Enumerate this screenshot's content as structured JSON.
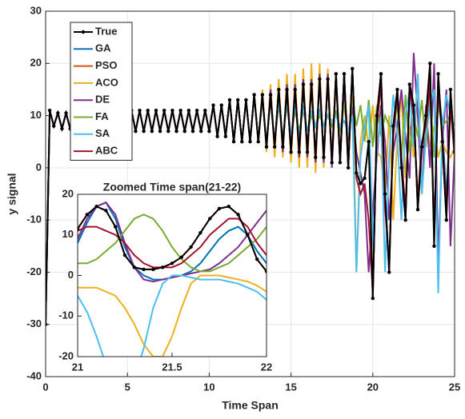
{
  "chart_data": [
    {
      "type": "line",
      "xlabel": "Time Span",
      "ylabel": "y signal",
      "xlim": [
        0,
        25
      ],
      "ylim": [
        -40,
        30
      ],
      "xticks": [
        0,
        5,
        10,
        15,
        20,
        25
      ],
      "yticks": [
        -40,
        -30,
        -20,
        -10,
        0,
        10,
        20,
        30
      ],
      "grid": true,
      "legend": "upper left",
      "x": [
        0,
        0.25,
        0.5,
        0.75,
        1,
        1.25,
        1.5,
        1.75,
        2,
        2.25,
        2.5,
        2.75,
        3,
        3.25,
        3.5,
        3.75,
        4,
        4.25,
        4.5,
        4.75,
        5,
        5.25,
        5.5,
        5.75,
        6,
        6.25,
        6.5,
        6.75,
        7,
        7.25,
        7.5,
        7.75,
        8,
        8.25,
        8.5,
        8.75,
        9,
        9.25,
        9.5,
        9.75,
        10,
        10.25,
        10.5,
        10.75,
        11,
        11.25,
        11.5,
        11.75,
        12,
        12.25,
        12.5,
        12.75,
        13,
        13.25,
        13.5,
        13.75,
        14,
        14.25,
        14.5,
        14.75,
        15,
        15.25,
        15.5,
        15.75,
        16,
        16.25,
        16.5,
        16.75,
        17,
        17.25,
        17.5,
        17.75,
        18,
        18.25,
        18.5,
        18.75,
        19,
        19.25,
        19.5,
        19.75,
        20,
        20.25,
        20.5,
        20.75,
        21,
        21.25,
        21.5,
        21.75,
        22,
        22.25,
        22.5,
        22.75,
        23,
        23.25,
        23.5,
        23.75,
        24,
        24.25,
        24.5,
        24.75,
        25
      ],
      "series": [
        {
          "name": "True",
          "color": "#000000",
          "marker": "o",
          "values": [
            -30,
            11,
            8,
            10.5,
            7.5,
            10.5,
            7.5,
            10.5,
            7.5,
            10.5,
            7.5,
            10.5,
            7.5,
            10.5,
            7.5,
            10.5,
            7.5,
            10.5,
            7.5,
            10.5,
            7.5,
            11,
            7,
            11,
            7,
            11,
            7,
            11,
            7,
            11,
            7,
            11,
            7,
            11,
            7,
            11,
            7,
            11,
            7,
            11,
            7,
            12,
            6,
            12,
            6,
            13,
            5,
            13,
            5,
            13,
            5,
            14,
            5,
            14,
            4,
            14,
            4,
            15,
            4,
            15,
            3,
            15,
            3,
            16,
            3,
            16,
            2,
            17,
            2,
            17,
            1,
            18,
            1,
            18,
            0,
            19,
            -1,
            -3,
            -2,
            5,
            -25,
            10,
            18,
            -5,
            -20,
            8,
            15,
            0,
            -10,
            16,
            12,
            -8,
            4,
            10,
            20,
            -15,
            18,
            5,
            -10,
            15,
            3
          ]
        },
        {
          "name": "GA",
          "color": "#0072BD",
          "values": [
            -30,
            11,
            8,
            10.5,
            7.5,
            10.5,
            7.5,
            10.5,
            7.5,
            10.5,
            7.5,
            10.5,
            7.5,
            10.5,
            7.5,
            10.5,
            7.5,
            10.5,
            7.5,
            10.5,
            7.5,
            11,
            7,
            11,
            7,
            11,
            7,
            11,
            7,
            11,
            7,
            11,
            7,
            11,
            7,
            11,
            7,
            11,
            7,
            11,
            7,
            12,
            6,
            12,
            6,
            13,
            5,
            13,
            5,
            13,
            5,
            14,
            5,
            14,
            4,
            14,
            4,
            15,
            4,
            15,
            3,
            15,
            3,
            16,
            3,
            16,
            2,
            17,
            2,
            17,
            1,
            18,
            1,
            18,
            0,
            19,
            -1,
            -3,
            -2,
            5,
            -25,
            10,
            18,
            -5,
            -20,
            8,
            15,
            0,
            -10,
            16,
            12,
            -8,
            4,
            10,
            18,
            -12,
            16,
            8,
            -6,
            12,
            5
          ]
        },
        {
          "name": "PSO",
          "color": "#D95319",
          "values": [
            -30,
            11,
            8,
            10.5,
            7.5,
            10.5,
            7.5,
            10.5,
            7.5,
            10.5,
            7.5,
            10.5,
            7.5,
            10.5,
            7.5,
            10.5,
            7.5,
            10.5,
            7.5,
            10.5,
            7.5,
            11,
            7,
            11,
            7,
            11,
            7,
            11,
            7,
            11,
            7,
            11,
            7,
            11,
            7,
            11,
            7,
            11,
            7,
            11,
            7,
            12,
            6,
            12,
            6,
            13,
            5,
            13,
            5,
            13,
            5,
            14,
            5,
            14,
            4,
            14,
            4,
            15,
            4,
            15,
            3,
            15,
            3,
            16,
            3,
            16,
            2,
            17,
            2,
            17,
            1,
            18,
            1,
            18,
            0,
            19,
            -1,
            -3,
            -2,
            5,
            -25,
            10,
            18,
            -5,
            -20,
            8,
            15,
            0,
            -10,
            16,
            12,
            -8,
            4,
            10,
            20,
            -15,
            18,
            5,
            -10,
            15,
            3
          ]
        },
        {
          "name": "ACO",
          "color": "#EDB120",
          "values": [
            -30,
            11,
            8,
            10.5,
            7.5,
            10.5,
            7.5,
            10.5,
            7.5,
            10.5,
            7.5,
            10.5,
            7.5,
            10.5,
            7.5,
            10.5,
            7.5,
            10.5,
            7.5,
            10.5,
            7.5,
            11,
            7,
            11,
            7,
            11,
            7,
            11,
            7,
            11,
            7,
            11,
            7,
            11,
            7,
            11,
            7,
            11,
            7,
            11,
            7,
            12,
            6,
            12,
            6,
            13,
            5,
            13,
            5,
            13,
            5,
            14,
            5,
            15,
            3,
            16,
            2,
            17,
            2,
            18,
            1,
            18,
            0,
            19,
            0,
            20,
            -1,
            20,
            0,
            19,
            2,
            18,
            3,
            17,
            4,
            16,
            -20,
            5,
            10,
            4,
            12,
            3,
            2,
            -5,
            10,
            -10,
            6,
            14,
            -2,
            8,
            2,
            18,
            -5,
            10,
            4,
            8,
            2,
            5,
            3,
            2,
            4
          ]
        },
        {
          "name": "DE",
          "color": "#7E2F8E",
          "values": [
            -30,
            11,
            8,
            10.5,
            7.5,
            10.5,
            7.5,
            10.5,
            7.5,
            10.5,
            7.5,
            10.5,
            7.5,
            10.5,
            7.5,
            10.5,
            7.5,
            10.5,
            7.5,
            10.5,
            7.5,
            11,
            7,
            11,
            7,
            11,
            7,
            11,
            7,
            11,
            7,
            11,
            7,
            11,
            7,
            11,
            7,
            11,
            7,
            11,
            7,
            12,
            6,
            12,
            6,
            13,
            5,
            13,
            5,
            13,
            5,
            14,
            5,
            14,
            4,
            15,
            4,
            15,
            3,
            16,
            3,
            16,
            2,
            17,
            2,
            17,
            1,
            18,
            1,
            18,
            0,
            17,
            2,
            15,
            5,
            12,
            3,
            -1,
            -5,
            -20,
            -8,
            2,
            12,
            5,
            -10,
            3,
            8,
            15,
            6,
            -2,
            22,
            10,
            -5,
            12,
            0,
            20,
            -18,
            5,
            15,
            -15,
            3
          ]
        },
        {
          "name": "FA",
          "color": "#77AC30",
          "values": [
            -30,
            11,
            8,
            10.5,
            7.5,
            10.5,
            7.5,
            10.5,
            7.5,
            10.5,
            7.5,
            10.5,
            7.5,
            10.5,
            7.5,
            10.5,
            7.5,
            10.5,
            7.5,
            10.5,
            7.5,
            11,
            7,
            11,
            7,
            11,
            7,
            11,
            7,
            11,
            7,
            11,
            7,
            11,
            7,
            11,
            7,
            11,
            7,
            11,
            7,
            12,
            6,
            12,
            6,
            13,
            5,
            13,
            5,
            13,
            5,
            14,
            5,
            13,
            5,
            13,
            5,
            12,
            6,
            12,
            6,
            11,
            7,
            11,
            7,
            10,
            8,
            10,
            8,
            10,
            8,
            11,
            7,
            12,
            6,
            13,
            8,
            12,
            5,
            13,
            4,
            12,
            6,
            10,
            8,
            8,
            12,
            2,
            14,
            3,
            10,
            6,
            13,
            4,
            15,
            2,
            12,
            8,
            9,
            10,
            8
          ]
        },
        {
          "name": "SA",
          "color": "#4DBEEE",
          "values": [
            -30,
            11,
            8,
            10.5,
            7.5,
            10.5,
            7.5,
            10.5,
            7.5,
            10.5,
            7.5,
            10.5,
            7.5,
            10.5,
            7.5,
            10.5,
            7.5,
            10.5,
            7.5,
            10.5,
            7.5,
            11,
            7,
            11,
            7,
            11,
            7,
            11,
            7,
            11,
            7,
            11,
            7,
            11,
            7,
            11,
            7,
            11,
            7,
            11,
            7,
            12,
            6,
            12,
            6,
            13,
            5,
            13,
            5,
            13,
            5,
            14,
            5,
            14,
            4,
            14,
            5,
            13,
            5,
            13,
            6,
            12,
            6,
            12,
            7,
            11,
            8,
            11,
            8,
            10,
            9,
            10,
            8,
            9,
            7,
            10,
            -20,
            2,
            8,
            12,
            -15,
            4,
            10,
            -20,
            2,
            14,
            6,
            -10,
            10,
            15,
            4,
            18,
            -5,
            6,
            12,
            15,
            -24,
            8,
            14,
            10,
            6
          ]
        },
        {
          "name": "ABC",
          "color": "#A2142F",
          "values": [
            -30,
            11,
            8,
            10.5,
            7.5,
            10.5,
            7.5,
            10.5,
            7.5,
            10.5,
            7.5,
            10.5,
            7.5,
            10.5,
            7.5,
            10.5,
            7.5,
            10.5,
            7.5,
            10.5,
            7.5,
            11,
            7,
            11,
            7,
            11,
            7,
            11,
            7,
            11,
            7,
            11,
            7,
            11,
            7,
            11,
            7,
            11,
            7,
            11,
            7,
            12,
            6,
            12,
            6,
            13,
            5,
            13,
            5,
            13,
            5,
            14,
            5,
            14,
            4,
            14,
            4,
            15,
            4,
            15,
            3,
            15,
            3,
            16,
            3,
            16,
            2,
            17,
            2,
            17,
            1,
            18,
            1,
            18,
            0,
            19,
            -2,
            -5,
            -3,
            -10,
            -24,
            8,
            16,
            -8,
            -18,
            6,
            14,
            2,
            -8,
            15,
            10,
            -6,
            5,
            8,
            16,
            -12,
            15,
            6,
            -8,
            12,
            2
          ]
        }
      ]
    },
    {
      "type": "line",
      "title": "Zoomed Time span(21-22)",
      "xlim": [
        21,
        22
      ],
      "ylim": [
        -20,
        20
      ],
      "xticks": [
        21,
        21.5,
        22
      ],
      "yticks": [
        -20,
        -10,
        0,
        10,
        20
      ],
      "grid": false,
      "x": [
        21,
        21.05,
        21.1,
        21.15,
        21.2,
        21.25,
        21.3,
        21.35,
        21.4,
        21.45,
        21.5,
        21.55,
        21.6,
        21.65,
        21.7,
        21.75,
        21.8,
        21.85,
        21.9,
        21.95,
        22
      ],
      "series": [
        {
          "name": "True",
          "color": "#000000",
          "marker": "o",
          "values": [
            11.5,
            15,
            17,
            16,
            12,
            5,
            2,
            1.5,
            1.5,
            2,
            3,
            4.5,
            7,
            10.5,
            14,
            16.5,
            17,
            15,
            10,
            4,
            1
          ]
        },
        {
          "name": "GA",
          "color": "#0072BD",
          "values": [
            8,
            13,
            17,
            18,
            14,
            7,
            2,
            0,
            -1,
            -1,
            -0.5,
            0,
            1,
            3,
            6,
            9,
            11,
            12,
            10,
            6,
            3
          ]
        },
        {
          "name": "PSO",
          "color": "#D95319",
          "values": [
            11.5,
            15,
            17,
            16,
            12,
            5,
            2,
            1.5,
            1.5,
            2,
            3,
            4.5,
            7,
            10.5,
            14,
            16.5,
            17,
            15,
            10,
            4,
            1
          ]
        },
        {
          "name": "ACO",
          "color": "#EDB120",
          "values": [
            -3,
            -3,
            -3,
            -4,
            -5,
            -8,
            -12,
            -17,
            -20,
            -20,
            -15,
            -8,
            -2,
            0,
            0,
            0,
            -0.5,
            -1,
            -1.5,
            -2.5,
            -4
          ]
        },
        {
          "name": "DE",
          "color": "#7E2F8E",
          "values": [
            9,
            14,
            17,
            18,
            15,
            8,
            2,
            -1,
            -1.5,
            -1,
            -0.5,
            0,
            0.5,
            1,
            1.5,
            3,
            5,
            7,
            10,
            13,
            16
          ]
        },
        {
          "name": "FA",
          "color": "#77AC30",
          "values": [
            3,
            3,
            4,
            6,
            8,
            11,
            14,
            15,
            14,
            11,
            7,
            4,
            2,
            1,
            1,
            2,
            3,
            5,
            7,
            9,
            12
          ]
        },
        {
          "name": "SA",
          "color": "#4DBEEE",
          "values": [
            -5,
            -9,
            -15,
            -22,
            -27,
            -28,
            -25,
            -18,
            -8,
            -2,
            0,
            0,
            -0.5,
            -1,
            -1,
            -1,
            -1.5,
            -2,
            -3,
            -4,
            -6
          ]
        },
        {
          "name": "ABC",
          "color": "#A2142F",
          "values": [
            11,
            12,
            12,
            11,
            10,
            8,
            5,
            3,
            2,
            2,
            2,
            3,
            5,
            7,
            10,
            12,
            14,
            14,
            12,
            8,
            5
          ]
        }
      ]
    }
  ]
}
